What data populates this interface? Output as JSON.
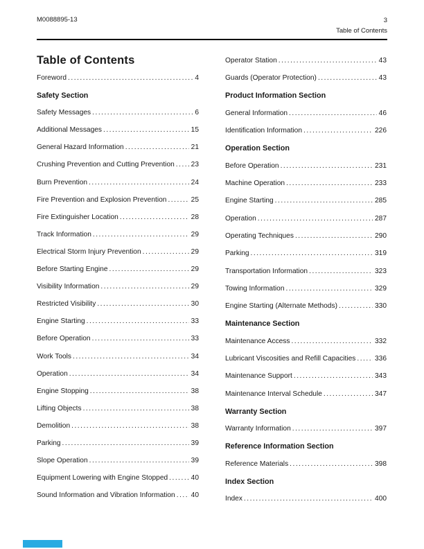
{
  "header": {
    "doc_number": "M0088895-13",
    "page_number": "3",
    "section_label": "Table of Contents"
  },
  "title": "Table of Contents",
  "columns": {
    "left": [
      {
        "type": "entry",
        "label": "Foreword",
        "page": "4"
      },
      {
        "type": "heading",
        "label": "Safety Section"
      },
      {
        "type": "entry",
        "label": "Safety Messages",
        "page": "6"
      },
      {
        "type": "entry",
        "label": "Additional Messages",
        "page": "15"
      },
      {
        "type": "entry",
        "label": "General Hazard Information",
        "page": "21"
      },
      {
        "type": "entry",
        "label": "Crushing Prevention and Cutting Prevention",
        "page": "23"
      },
      {
        "type": "entry",
        "label": "Burn Prevention",
        "page": "24"
      },
      {
        "type": "entry",
        "label": "Fire Prevention and Explosion Prevention",
        "page": "25"
      },
      {
        "type": "entry",
        "label": "Fire Extinguisher Location",
        "page": "28"
      },
      {
        "type": "entry",
        "label": "Track Information",
        "page": "29"
      },
      {
        "type": "entry",
        "label": "Electrical Storm Injury Prevention",
        "page": "29"
      },
      {
        "type": "entry",
        "label": "Before Starting Engine",
        "page": "29"
      },
      {
        "type": "entry",
        "label": "Visibility Information",
        "page": "29"
      },
      {
        "type": "entry",
        "label": "Restricted Visibility",
        "page": "30"
      },
      {
        "type": "entry",
        "label": "Engine Starting",
        "page": "33"
      },
      {
        "type": "entry",
        "label": "Before Operation",
        "page": "33"
      },
      {
        "type": "entry",
        "label": "Work Tools",
        "page": "34"
      },
      {
        "type": "entry",
        "label": "Operation",
        "page": "34"
      },
      {
        "type": "entry",
        "label": "Engine Stopping",
        "page": "38"
      },
      {
        "type": "entry",
        "label": "Lifting Objects",
        "page": "38"
      },
      {
        "type": "entry",
        "label": "Demolition",
        "page": "38"
      },
      {
        "type": "entry",
        "label": "Parking",
        "page": "39"
      },
      {
        "type": "entry",
        "label": "Slope Operation",
        "page": "39"
      },
      {
        "type": "entry",
        "label": "Equipment Lowering with Engine Stopped",
        "page": "40"
      },
      {
        "type": "entry",
        "label": "Sound Information and Vibration Information",
        "page": "40"
      }
    ],
    "right": [
      {
        "type": "entry",
        "label": "Operator Station",
        "page": "43"
      },
      {
        "type": "entry",
        "label": "Guards (Operator Protection)",
        "page": "43"
      },
      {
        "type": "heading",
        "label": "Product Information Section"
      },
      {
        "type": "entry",
        "label": "General Information",
        "page": "46"
      },
      {
        "type": "entry",
        "label": "Identification Information",
        "page": "226"
      },
      {
        "type": "heading",
        "label": "Operation Section"
      },
      {
        "type": "entry",
        "label": "Before Operation",
        "page": "231"
      },
      {
        "type": "entry",
        "label": "Machine Operation",
        "page": "233"
      },
      {
        "type": "entry",
        "label": "Engine Starting",
        "page": "285"
      },
      {
        "type": "entry",
        "label": "Operation",
        "page": "287"
      },
      {
        "type": "entry",
        "label": "Operating Techniques",
        "page": "290"
      },
      {
        "type": "entry",
        "label": "Parking",
        "page": "319"
      },
      {
        "type": "entry",
        "label": "Transportation Information",
        "page": "323"
      },
      {
        "type": "entry",
        "label": "Towing Information",
        "page": "329"
      },
      {
        "type": "entry",
        "label": "Engine Starting (Alternate Methods)",
        "page": "330"
      },
      {
        "type": "heading",
        "label": "Maintenance Section"
      },
      {
        "type": "entry",
        "label": "Maintenance Access",
        "page": "332"
      },
      {
        "type": "entry",
        "label": "Lubricant Viscosities and Refill Capacities",
        "page": "336"
      },
      {
        "type": "entry",
        "label": "Maintenance Support",
        "page": "343"
      },
      {
        "type": "entry",
        "label": "Maintenance Interval Schedule",
        "page": "347"
      },
      {
        "type": "heading",
        "label": "Warranty Section"
      },
      {
        "type": "entry",
        "label": "Warranty Information",
        "page": "397"
      },
      {
        "type": "heading",
        "label": "Reference Information Section"
      },
      {
        "type": "entry",
        "label": "Reference Materials",
        "page": "398"
      },
      {
        "type": "heading",
        "label": "Index Section"
      },
      {
        "type": "entry",
        "label": "Index",
        "page": "400"
      }
    ]
  },
  "colors": {
    "text": "#1a1a1a",
    "rule": "#000000",
    "footer_bar": "#29abe2"
  }
}
